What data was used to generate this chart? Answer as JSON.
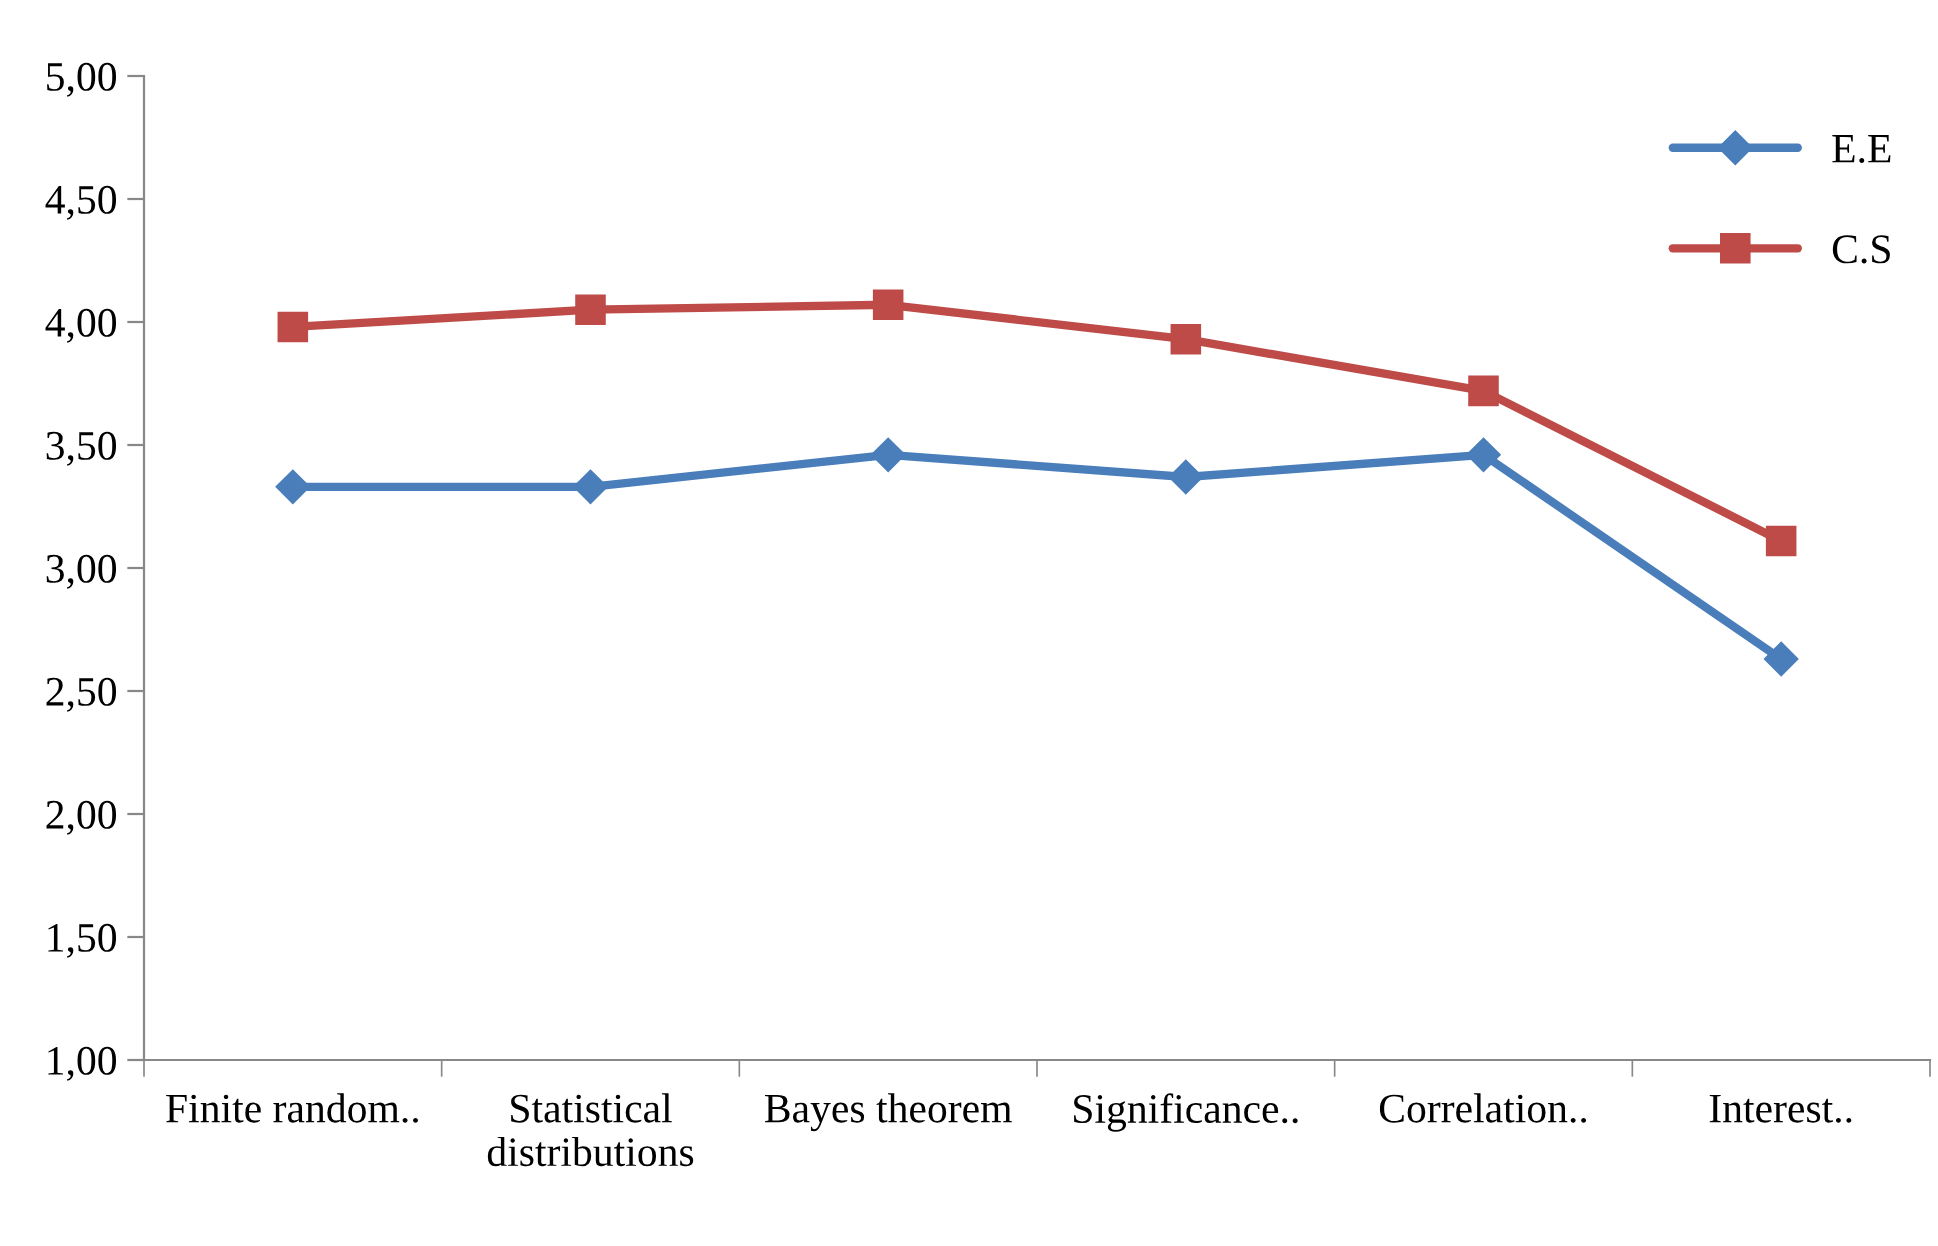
{
  "chart_data": {
    "type": "line",
    "categories": [
      "Finite random..",
      "Statistical\ndistributions",
      "Bayes theorem",
      "Significance..",
      "Correlation..",
      "Interest.."
    ],
    "series": [
      {
        "name": "E.E",
        "color": "#4a7ebb",
        "marker": "diamond",
        "values": [
          3.33,
          3.33,
          3.46,
          3.37,
          3.46,
          2.63
        ]
      },
      {
        "name": "C.S",
        "color": "#be4b48",
        "marker": "square",
        "values": [
          3.98,
          4.05,
          4.07,
          3.93,
          3.72,
          3.11
        ]
      }
    ],
    "ylim": [
      1,
      5
    ],
    "yticks": [
      {
        "value": 1,
        "label": "1,00"
      },
      {
        "value": 1.5,
        "label": "1,50"
      },
      {
        "value": 2,
        "label": "2,00"
      },
      {
        "value": 2.5,
        "label": "2,50"
      },
      {
        "value": 3,
        "label": "3,00"
      },
      {
        "value": 3.5,
        "label": "3,50"
      },
      {
        "value": 4,
        "label": "4,00"
      },
      {
        "value": 4.5,
        "label": "4,50"
      },
      {
        "value": 5,
        "label": "5,00"
      }
    ],
    "grid": false,
    "legend": "top right",
    "line_style": "solid"
  }
}
